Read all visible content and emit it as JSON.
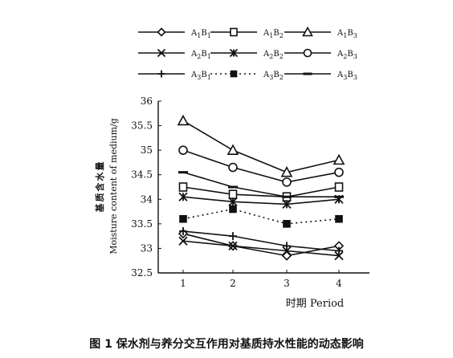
{
  "figure": {
    "caption": "图 1   保水剂与养分交互作用对基质持水性能的动态影响"
  },
  "chart_data": {
    "type": "line",
    "title": "",
    "xlabel": "时期 Period",
    "ylabel_cn": "基质含水量",
    "ylabel_en": "Moisture content of medium/g",
    "categories": [
      "1",
      "2",
      "3",
      "4"
    ],
    "ylim": [
      32.5,
      36
    ],
    "yticks": [
      "32.5",
      "33",
      "33.5",
      "34",
      "34.5",
      "35",
      "35.5",
      "36"
    ],
    "grid": false,
    "legend_position": "top",
    "series": [
      {
        "name": "A1B1",
        "label_main_1": "A",
        "label_sub_1": "1",
        "label_main_2": "B",
        "label_sub_2": "1",
        "marker": "diamond",
        "dash": "solid",
        "values": [
          33.3,
          33.05,
          32.85,
          33.05
        ]
      },
      {
        "name": "A1B2",
        "label_main_1": "A",
        "label_sub_1": "1",
        "label_main_2": "B",
        "label_sub_2": "2",
        "marker": "square",
        "dash": "solid",
        "values": [
          34.25,
          34.1,
          34.05,
          34.25
        ]
      },
      {
        "name": "A1B3",
        "label_main_1": "A",
        "label_sub_1": "1",
        "label_main_2": "B",
        "label_sub_2": "3",
        "marker": "triangle",
        "dash": "solid",
        "values": [
          35.6,
          35.0,
          34.55,
          34.8
        ]
      },
      {
        "name": "A2B1",
        "label_main_1": "A",
        "label_sub_1": "2",
        "label_main_2": "B",
        "label_sub_2": "1",
        "marker": "x",
        "dash": "solid",
        "values": [
          33.15,
          33.05,
          32.95,
          32.85
        ]
      },
      {
        "name": "A2B2",
        "label_main_1": "A",
        "label_sub_1": "2",
        "label_main_2": "B",
        "label_sub_2": "2",
        "marker": "star",
        "dash": "solid",
        "values": [
          34.05,
          33.95,
          33.9,
          34.0
        ]
      },
      {
        "name": "A2B3",
        "label_main_1": "A",
        "label_sub_1": "2",
        "label_main_2": "B",
        "label_sub_2": "3",
        "marker": "circle",
        "dash": "solid",
        "values": [
          35.0,
          34.65,
          34.35,
          34.55
        ]
      },
      {
        "name": "A3B1",
        "label_main_1": "A",
        "label_sub_1": "3",
        "label_main_2": "B",
        "label_sub_2": "1",
        "marker": "plus",
        "dash": "solid",
        "values": [
          33.35,
          33.25,
          33.05,
          32.95
        ]
      },
      {
        "name": "A3B2",
        "label_main_1": "A",
        "label_sub_1": "3",
        "label_main_2": "B",
        "label_sub_2": "2",
        "marker": "filled-square",
        "dash": "dotted",
        "values": [
          33.6,
          33.8,
          33.5,
          33.6
        ]
      },
      {
        "name": "A3B3",
        "label_main_1": "A",
        "label_sub_1": "3",
        "label_main_2": "B",
        "label_sub_2": "3",
        "marker": "dash",
        "dash": "solid",
        "values": [
          34.55,
          34.25,
          34.05,
          34.05
        ]
      }
    ]
  }
}
